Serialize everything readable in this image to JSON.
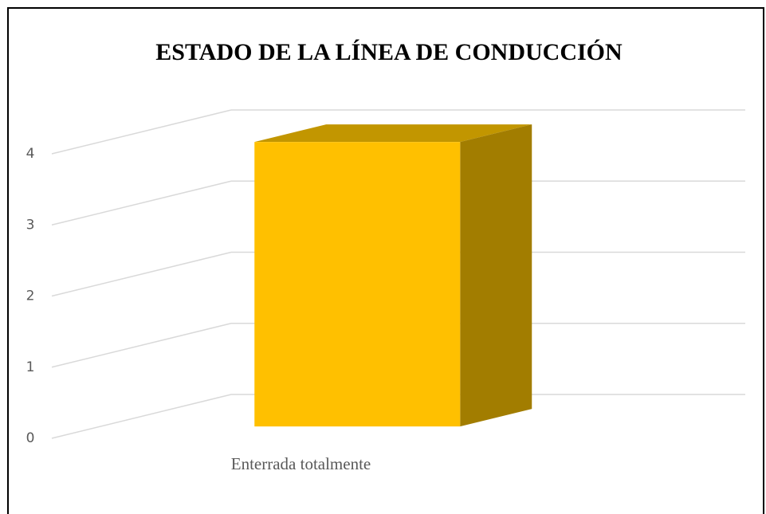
{
  "chart_data": {
    "type": "bar",
    "title": "ESTADO DE LA LÍNEA DE CONDUCCIÓN",
    "categories": [
      "Enterrada totalmente"
    ],
    "values": [
      4
    ],
    "color": "#ffc000",
    "ylim": [
      0,
      4
    ],
    "yticks": [
      0,
      1,
      2,
      3,
      4
    ],
    "grid": true
  }
}
